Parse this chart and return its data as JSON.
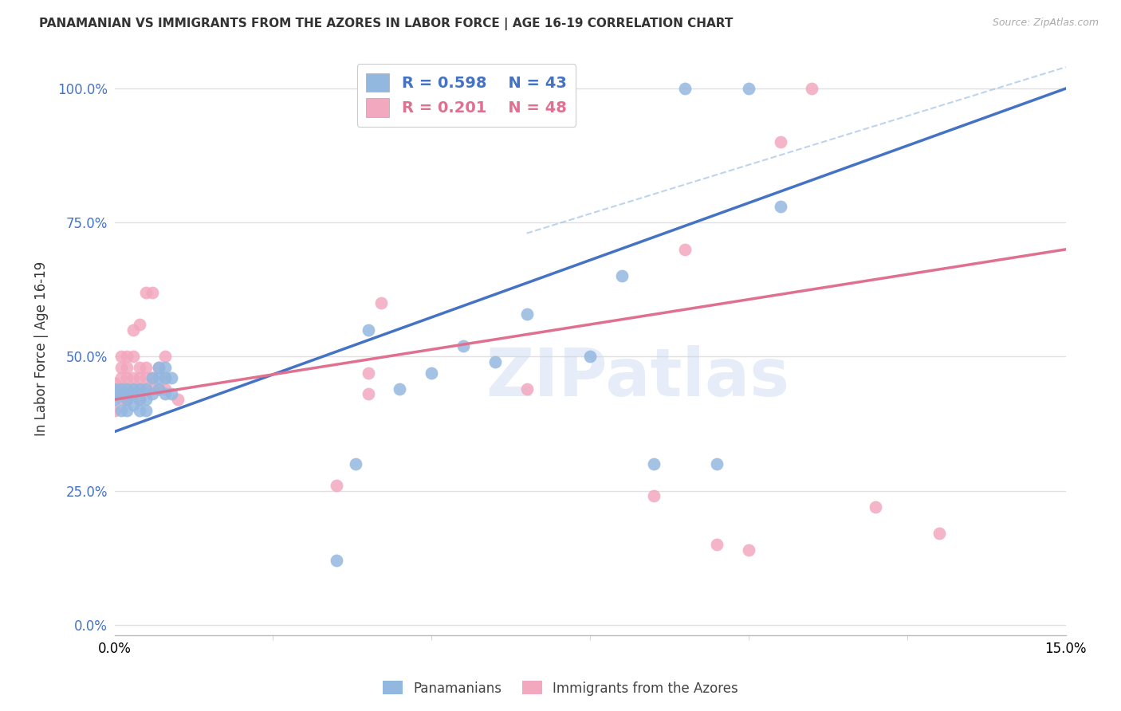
{
  "title": "PANAMANIAN VS IMMIGRANTS FROM THE AZORES IN LABOR FORCE | AGE 16-19 CORRELATION CHART",
  "source": "Source: ZipAtlas.com",
  "ylabel": "In Labor Force | Age 16-19",
  "xmin": 0.0,
  "xmax": 0.15,
  "ymin": -0.02,
  "ymax": 1.05,
  "blue_color": "#93b8e0",
  "pink_color": "#f2a8be",
  "blue_line_color": "#4472c4",
  "pink_line_color": "#e07090",
  "legend_blue_R": "R = 0.598",
  "legend_blue_N": "N = 43",
  "legend_pink_R": "R = 0.201",
  "legend_pink_N": "N = 48",
  "blue_scatter_x": [
    0.0,
    0.0,
    0.001,
    0.001,
    0.001,
    0.002,
    0.002,
    0.002,
    0.002,
    0.003,
    0.003,
    0.003,
    0.004,
    0.004,
    0.004,
    0.005,
    0.005,
    0.005,
    0.006,
    0.006,
    0.007,
    0.007,
    0.007,
    0.008,
    0.008,
    0.008,
    0.009,
    0.009,
    0.035,
    0.038,
    0.04,
    0.045,
    0.05,
    0.055,
    0.06,
    0.065,
    0.075,
    0.08,
    0.085,
    0.09,
    0.095,
    0.1,
    0.105
  ],
  "blue_scatter_y": [
    0.42,
    0.44,
    0.4,
    0.43,
    0.44,
    0.4,
    0.42,
    0.43,
    0.44,
    0.41,
    0.43,
    0.44,
    0.4,
    0.42,
    0.44,
    0.4,
    0.42,
    0.44,
    0.43,
    0.46,
    0.44,
    0.46,
    0.48,
    0.43,
    0.46,
    0.48,
    0.43,
    0.46,
    0.12,
    0.3,
    0.55,
    0.44,
    0.47,
    0.52,
    0.49,
    0.58,
    0.5,
    0.65,
    0.3,
    1.0,
    0.3,
    1.0,
    0.78
  ],
  "pink_scatter_x": [
    0.0,
    0.0,
    0.0,
    0.001,
    0.001,
    0.001,
    0.001,
    0.001,
    0.002,
    0.002,
    0.002,
    0.002,
    0.002,
    0.003,
    0.003,
    0.003,
    0.003,
    0.004,
    0.004,
    0.004,
    0.004,
    0.004,
    0.005,
    0.005,
    0.005,
    0.005,
    0.006,
    0.006,
    0.006,
    0.007,
    0.007,
    0.008,
    0.008,
    0.008,
    0.01,
    0.035,
    0.04,
    0.04,
    0.042,
    0.065,
    0.085,
    0.09,
    0.095,
    0.1,
    0.105,
    0.11,
    0.12,
    0.13
  ],
  "pink_scatter_y": [
    0.4,
    0.43,
    0.45,
    0.42,
    0.44,
    0.46,
    0.48,
    0.5,
    0.42,
    0.44,
    0.46,
    0.48,
    0.5,
    0.44,
    0.46,
    0.5,
    0.55,
    0.42,
    0.44,
    0.46,
    0.48,
    0.56,
    0.44,
    0.46,
    0.48,
    0.62,
    0.44,
    0.46,
    0.62,
    0.44,
    0.48,
    0.44,
    0.46,
    0.5,
    0.42,
    0.26,
    0.43,
    0.47,
    0.6,
    0.44,
    0.24,
    0.7,
    0.15,
    0.14,
    0.9,
    1.0,
    0.22,
    0.17
  ],
  "blue_line_x0": 0.0,
  "blue_line_y0": 0.36,
  "blue_line_x1": 0.15,
  "blue_line_y1": 1.0,
  "pink_line_x0": 0.0,
  "pink_line_y0": 0.42,
  "pink_line_x1": 0.15,
  "pink_line_y1": 0.7,
  "dash_line_x0": 0.065,
  "dash_line_y0": 0.73,
  "dash_line_x1": 0.15,
  "dash_line_y1": 1.04,
  "watermark": "ZIPatlas",
  "background_color": "#ffffff",
  "grid_color": "#e0e0e0",
  "yticks": [
    0.0,
    0.25,
    0.5,
    0.75,
    1.0
  ],
  "ytick_labels": [
    "0.0%",
    "25.0%",
    "50.0%",
    "75.0%",
    "100.0%"
  ]
}
